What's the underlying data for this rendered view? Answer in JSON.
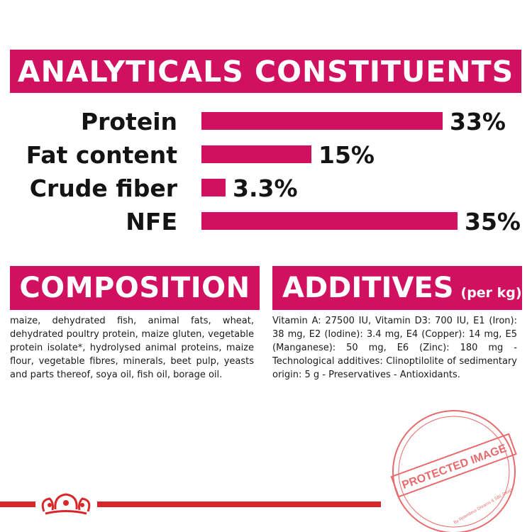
{
  "analytics": {
    "title": "ANALYTICALS CONSTITUENTS",
    "rows": [
      {
        "label": "Protein",
        "value_text": "33%",
        "value": 33
      },
      {
        "label": "Fat content",
        "value_text": "15%",
        "value": 15
      },
      {
        "label": "Crude fiber",
        "value_text": "3.3%",
        "value": 3.3
      },
      {
        "label": "NFE",
        "value_text": "35%",
        "value": 35
      }
    ]
  },
  "composition": {
    "title": "COMPOSITION",
    "text": "maize, dehydrated fish, animal fats, wheat, dehydrated poultry protein, maize gluten, vegetable protein isolate*, hydrolysed animal proteins, maize flour, vegetable fibres, minerals, beet pulp, yeasts and parts thereof, soya oil, fish oil, borage oil."
  },
  "additives": {
    "title": "ADDITIVES",
    "subtitle": "(per kg)",
    "text": "Vitamin A: 27500 IU, Vitamin D3: 700 IU, E1 (Iron): 38 mg, E2 (Iodine): 3.4 mg, E4 (Copper): 14 mg, E5 (Manganese): 50 mg, E6 (Zinc): 180 mg - Technological additives: Clinoptilolite of sedimentary origin: 5 g - Preservatives - Antioxidants."
  },
  "watermark": {
    "text": "PROTECTED IMAGE",
    "subtext": "By Relentless Dreams & SBL Dealz"
  },
  "colors": {
    "accent": "#d1105f",
    "footer_red": "#d9262b",
    "stamp": "#e0393b"
  },
  "icons": {
    "footer_logo": "crown-icon"
  }
}
